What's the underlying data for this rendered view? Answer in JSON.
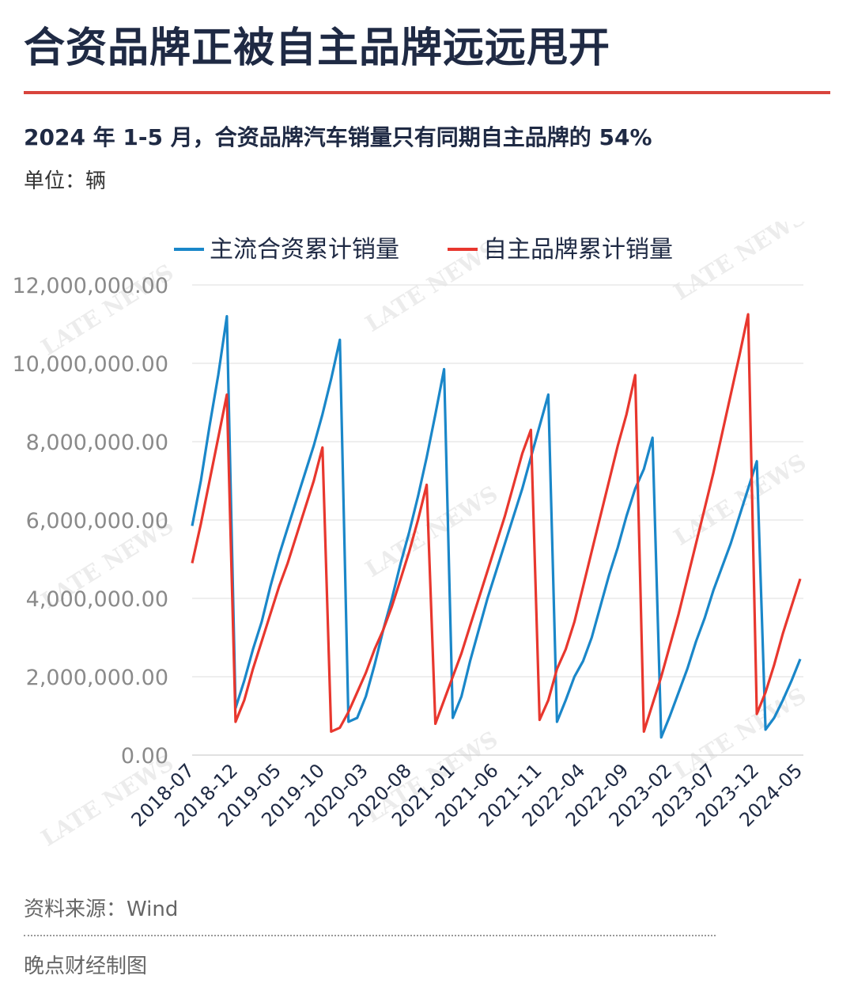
{
  "header": {
    "title": "合资品牌正被自主品牌远远甩开",
    "subtitle": "2024 年 1-5 月，合资品牌汽车销量只有同期自主品牌的 54%",
    "unit": "单位：辆"
  },
  "footer": {
    "source": "资料来源：Wind",
    "credit": "晚点财经制图"
  },
  "watermark": "LATE NEWS",
  "chart_data": {
    "type": "line",
    "title": "",
    "xlabel": "",
    "ylabel": "",
    "ylim": [
      0,
      12000000
    ],
    "yticks": [
      "0.00",
      "2,000,000.00",
      "4,000,000.00",
      "6,000,000.00",
      "8,000,000.00",
      "10,000,000.00",
      "12,000,000.00"
    ],
    "xticks": [
      "2018-07",
      "2018-12",
      "2019-05",
      "2019-10",
      "2020-03",
      "2020-08",
      "2021-01",
      "2021-06",
      "2021-11",
      "2022-04",
      "2022-09",
      "2023-02",
      "2023-07",
      "2023-12",
      "2024-05"
    ],
    "grid": "horizontal",
    "legend_position": "top",
    "x": [
      "2018-07",
      "2018-08",
      "2018-09",
      "2018-10",
      "2018-11",
      "2018-12",
      "2019-01",
      "2019-02",
      "2019-03",
      "2019-04",
      "2019-05",
      "2019-06",
      "2019-07",
      "2019-08",
      "2019-09",
      "2019-10",
      "2019-11",
      "2019-12",
      "2020-01",
      "2020-02",
      "2020-03",
      "2020-04",
      "2020-05",
      "2020-06",
      "2020-07",
      "2020-08",
      "2020-09",
      "2020-10",
      "2020-11",
      "2020-12",
      "2021-01",
      "2021-02",
      "2021-03",
      "2021-04",
      "2021-05",
      "2021-06",
      "2021-07",
      "2021-08",
      "2021-09",
      "2021-10",
      "2021-11",
      "2021-12",
      "2022-01",
      "2022-02",
      "2022-03",
      "2022-04",
      "2022-05",
      "2022-06",
      "2022-07",
      "2022-08",
      "2022-09",
      "2022-10",
      "2022-11",
      "2022-12",
      "2023-01",
      "2023-02",
      "2023-03",
      "2023-04",
      "2023-05",
      "2023-06",
      "2023-07",
      "2023-08",
      "2023-09",
      "2023-10",
      "2023-11",
      "2023-12",
      "2024-01",
      "2024-02",
      "2024-03",
      "2024-04",
      "2024-05"
    ],
    "series": [
      {
        "name": "主流合资累计销量",
        "color": "#1a87c9",
        "values": [
          5850000,
          7000000,
          8400000,
          9700000,
          11200000,
          1200000,
          1900000,
          2700000,
          3400000,
          4300000,
          5100000,
          5800000,
          6500000,
          7200000,
          7900000,
          8700000,
          9600000,
          10600000,
          850000,
          950000,
          1500000,
          2300000,
          3200000,
          4000000,
          4900000,
          5700000,
          6600000,
          7600000,
          8700000,
          9850000,
          950000,
          1500000,
          2400000,
          3200000,
          4000000,
          4700000,
          5400000,
          6100000,
          6800000,
          7600000,
          8400000,
          9200000,
          850000,
          1400000,
          2000000,
          2400000,
          3000000,
          3800000,
          4600000,
          5300000,
          6100000,
          6800000,
          7300000,
          8100000,
          450000,
          1000000,
          1600000,
          2200000,
          2900000,
          3500000,
          4200000,
          4800000,
          5400000,
          6100000,
          6800000,
          7500000,
          650000,
          950000,
          1400000,
          1900000,
          2450000
        ]
      },
      {
        "name": "自主品牌累计销量",
        "color": "#e8372e",
        "values": [
          4900000,
          5900000,
          7000000,
          8100000,
          9200000,
          850000,
          1400000,
          2200000,
          2900000,
          3600000,
          4300000,
          4900000,
          5600000,
          6300000,
          7000000,
          7850000,
          600000,
          700000,
          1100000,
          1600000,
          2100000,
          2700000,
          3200000,
          3800000,
          4500000,
          5200000,
          6000000,
          6900000,
          800000,
          1400000,
          2000000,
          2600000,
          3300000,
          4000000,
          4700000,
          5400000,
          6100000,
          6900000,
          7700000,
          8300000,
          900000,
          1400000,
          2200000,
          2700000,
          3400000,
          4300000,
          5200000,
          6100000,
          7000000,
          7900000,
          8700000,
          9700000,
          600000,
          1300000,
          2000000,
          2800000,
          3600000,
          4500000,
          5400000,
          6300000,
          7200000,
          8200000,
          9200000,
          10200000,
          11250000,
          1050000,
          1600000,
          2300000,
          3100000,
          3800000,
          4500000
        ]
      }
    ]
  }
}
